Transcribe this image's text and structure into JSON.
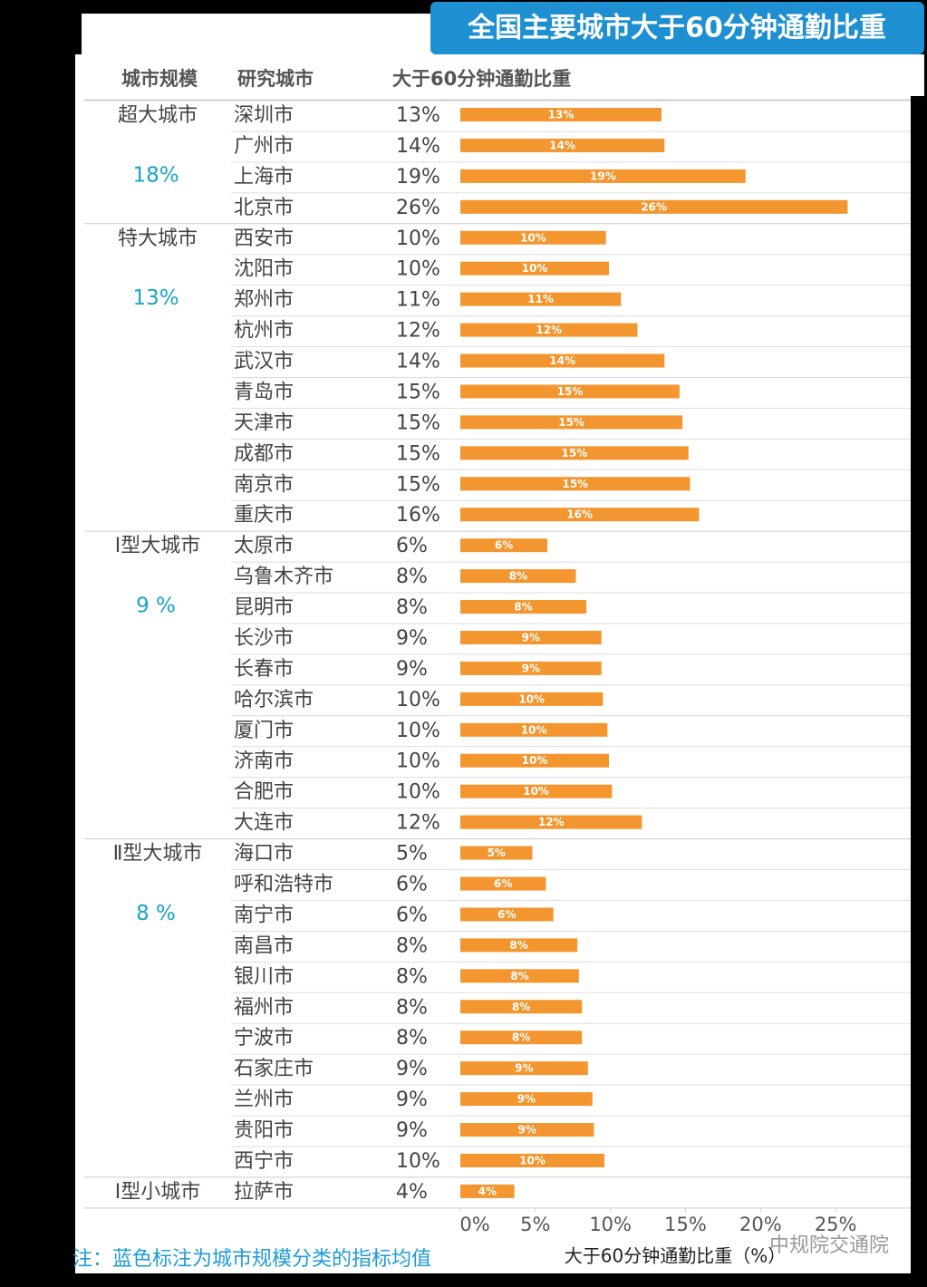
{
  "chart_data": {
    "type": "bar",
    "orientation": "horizontal",
    "title": "全国主要城市大于60分钟通勤比重",
    "headers": [
      "城市规模",
      "研究城市",
      "大于60分钟通勤比重"
    ],
    "color": "#f4962f",
    "xlim": [
      0,
      30
    ],
    "xticks": [
      {
        "value": 0,
        "label": "0%"
      },
      {
        "value": 5,
        "label": "5%"
      },
      {
        "value": 10,
        "label": "10%"
      },
      {
        "value": 15,
        "label": "15%"
      },
      {
        "value": 20,
        "label": "20%"
      },
      {
        "value": 25,
        "label": "25%"
      }
    ],
    "xlabel": "大于60分钟通勤比重（%）",
    "groups": [
      {
        "name": "超大城市",
        "average": "18%",
        "categories": [
          "深圳市",
          "广州市",
          "上海市",
          "北京市"
        ],
        "values": [
          13.4,
          13.6,
          19.0,
          25.8
        ],
        "value_labels": [
          "13%",
          "14%",
          "19%",
          "26%"
        ]
      },
      {
        "name": "特大城市",
        "average": "13%",
        "categories": [
          "西安市",
          "沈阳市",
          "郑州市",
          "杭州市",
          "武汉市",
          "青岛市",
          "天津市",
          "成都市",
          "南京市",
          "重庆市"
        ],
        "values": [
          9.7,
          9.9,
          10.7,
          11.8,
          13.6,
          14.6,
          14.8,
          15.2,
          15.3,
          15.9
        ],
        "value_labels": [
          "10%",
          "10%",
          "11%",
          "12%",
          "14%",
          "15%",
          "15%",
          "15%",
          "15%",
          "16%"
        ]
      },
      {
        "name": "Ⅰ型大城市",
        "average": "9 %",
        "categories": [
          "太原市",
          "乌鲁木齐市",
          "昆明市",
          "长沙市",
          "长春市",
          "哈尔滨市",
          "厦门市",
          "济南市",
          "合肥市",
          "大连市"
        ],
        "values": [
          5.8,
          7.7,
          8.4,
          9.4,
          9.4,
          9.5,
          9.8,
          9.9,
          10.1,
          12.1
        ],
        "value_labels": [
          "6%",
          "8%",
          "8%",
          "9%",
          "9%",
          "10%",
          "10%",
          "10%",
          "10%",
          "12%"
        ]
      },
      {
        "name": "Ⅱ型大城市",
        "average": "8 %",
        "categories": [
          "海口市",
          "呼和浩特市",
          "南宁市",
          "南昌市",
          "银川市",
          "福州市",
          "宁波市",
          "石家庄市",
          "兰州市",
          "贵阳市",
          "西宁市"
        ],
        "values": [
          4.8,
          5.7,
          6.2,
          7.8,
          7.9,
          8.1,
          8.1,
          8.5,
          8.8,
          8.9,
          9.6
        ],
        "value_labels": [
          "5%",
          "6%",
          "6%",
          "8%",
          "8%",
          "8%",
          "8%",
          "9%",
          "9%",
          "9%",
          "10%"
        ]
      },
      {
        "name": "Ⅰ型小城市",
        "categories": [
          "拉萨市"
        ],
        "values": [
          3.6
        ],
        "value_labels": [
          "4%"
        ]
      }
    ],
    "note": "注：蓝色标注为城市规模分类的指标均值",
    "watermark": "中规院交通院"
  }
}
